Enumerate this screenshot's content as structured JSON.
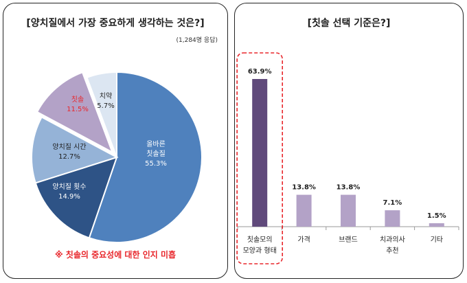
{
  "chart_data": [
    {
      "type": "pie",
      "title": "[양치질에서 가장 중요하게 생각하는 것은?]",
      "note": "(1,284명 응답)",
      "slices": [
        {
          "label": "올바른\n칫솔질",
          "value": 55.3,
          "value_label": "55.3%",
          "color": "#4f81bd"
        },
        {
          "label": "양치질 횟수",
          "value": 14.9,
          "value_label": "14.9%",
          "color": "#2e5386"
        },
        {
          "label": "양치질 시간",
          "value": 12.7,
          "value_label": "12.7%",
          "color": "#95b3d7"
        },
        {
          "label": "칫솔",
          "value": 11.5,
          "value_label": "11.5%",
          "color": "#b3a2c7",
          "highlight": true,
          "exploded": true
        },
        {
          "label": "치약",
          "value": 5.7,
          "value_label": "5.7%",
          "color": "#dce6f2"
        }
      ],
      "footnote": "※ 칫솔의 중요성에 대한 인지 미흡"
    },
    {
      "type": "bar",
      "title": "[칫솔 선택 기준은?]",
      "categories": [
        "칫솔모의\n모양과 형태",
        "가격",
        "브랜드",
        "치과의사\n추천",
        "기타"
      ],
      "values": [
        63.9,
        13.8,
        13.8,
        7.1,
        1.5
      ],
      "value_labels": [
        "63.9%",
        "13.8%",
        "13.8%",
        "7.1%",
        "1.5%"
      ],
      "ylim": [
        0,
        70
      ],
      "colors": {
        "highlight": "#604a7b",
        "normal": "#b3a2c7"
      },
      "highlighted_category": 0
    }
  ],
  "colors": {
    "footnote_red": "#e8262b",
    "highlight_label_red": "#e8262b",
    "border": "#222222"
  }
}
